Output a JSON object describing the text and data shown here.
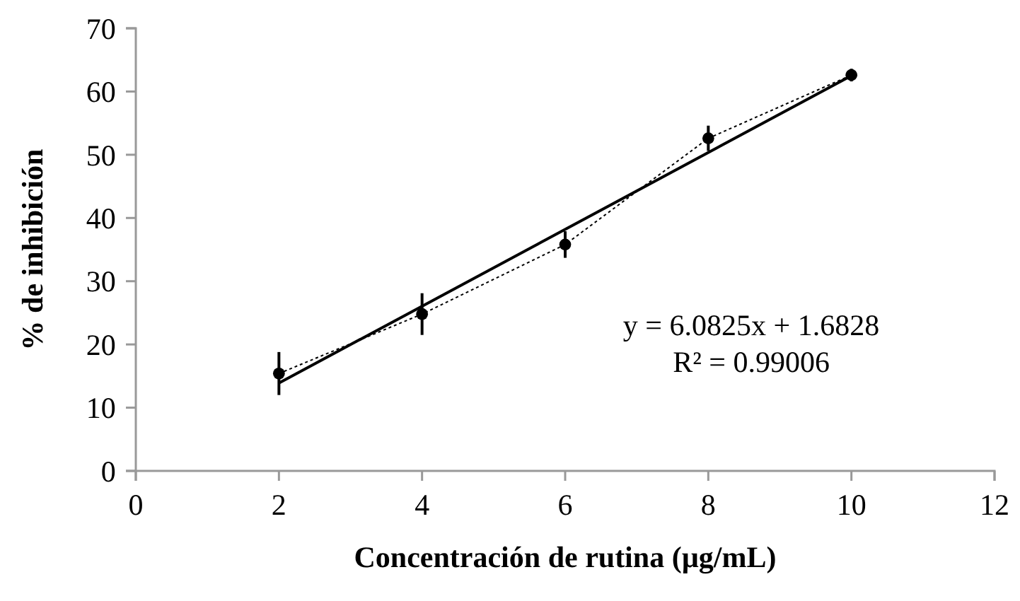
{
  "chart_data": {
    "type": "line",
    "xlabel": "Concentración de rutina (µg/mL)",
    "ylabel": "% de inhibición",
    "xlim": [
      0,
      12
    ],
    "xticks": [
      0,
      2,
      4,
      6,
      8,
      10,
      12
    ],
    "ylim": [
      0,
      70
    ],
    "yticks": [
      0,
      10,
      20,
      30,
      40,
      50,
      60,
      70
    ],
    "grid": false,
    "series": [
      {
        "color": "#000000",
        "x": [
          2,
          4,
          6,
          8,
          10
        ],
        "values": [
          15.4,
          24.8,
          35.8,
          52.6,
          62.6
        ],
        "errors": [
          3.4,
          3.3,
          2.1,
          2,
          1
        ],
        "line_style": "dotted",
        "marker": "circle"
      },
      {
        "color": "#000000",
        "x": [
          2,
          10
        ],
        "values": [
          13.9,
          62.5
        ],
        "line_style": "solid",
        "marker": "none"
      }
    ],
    "annotations": [
      "y = 6.0825x + 1.6828",
      "R² = 0.99006"
    ]
  }
}
